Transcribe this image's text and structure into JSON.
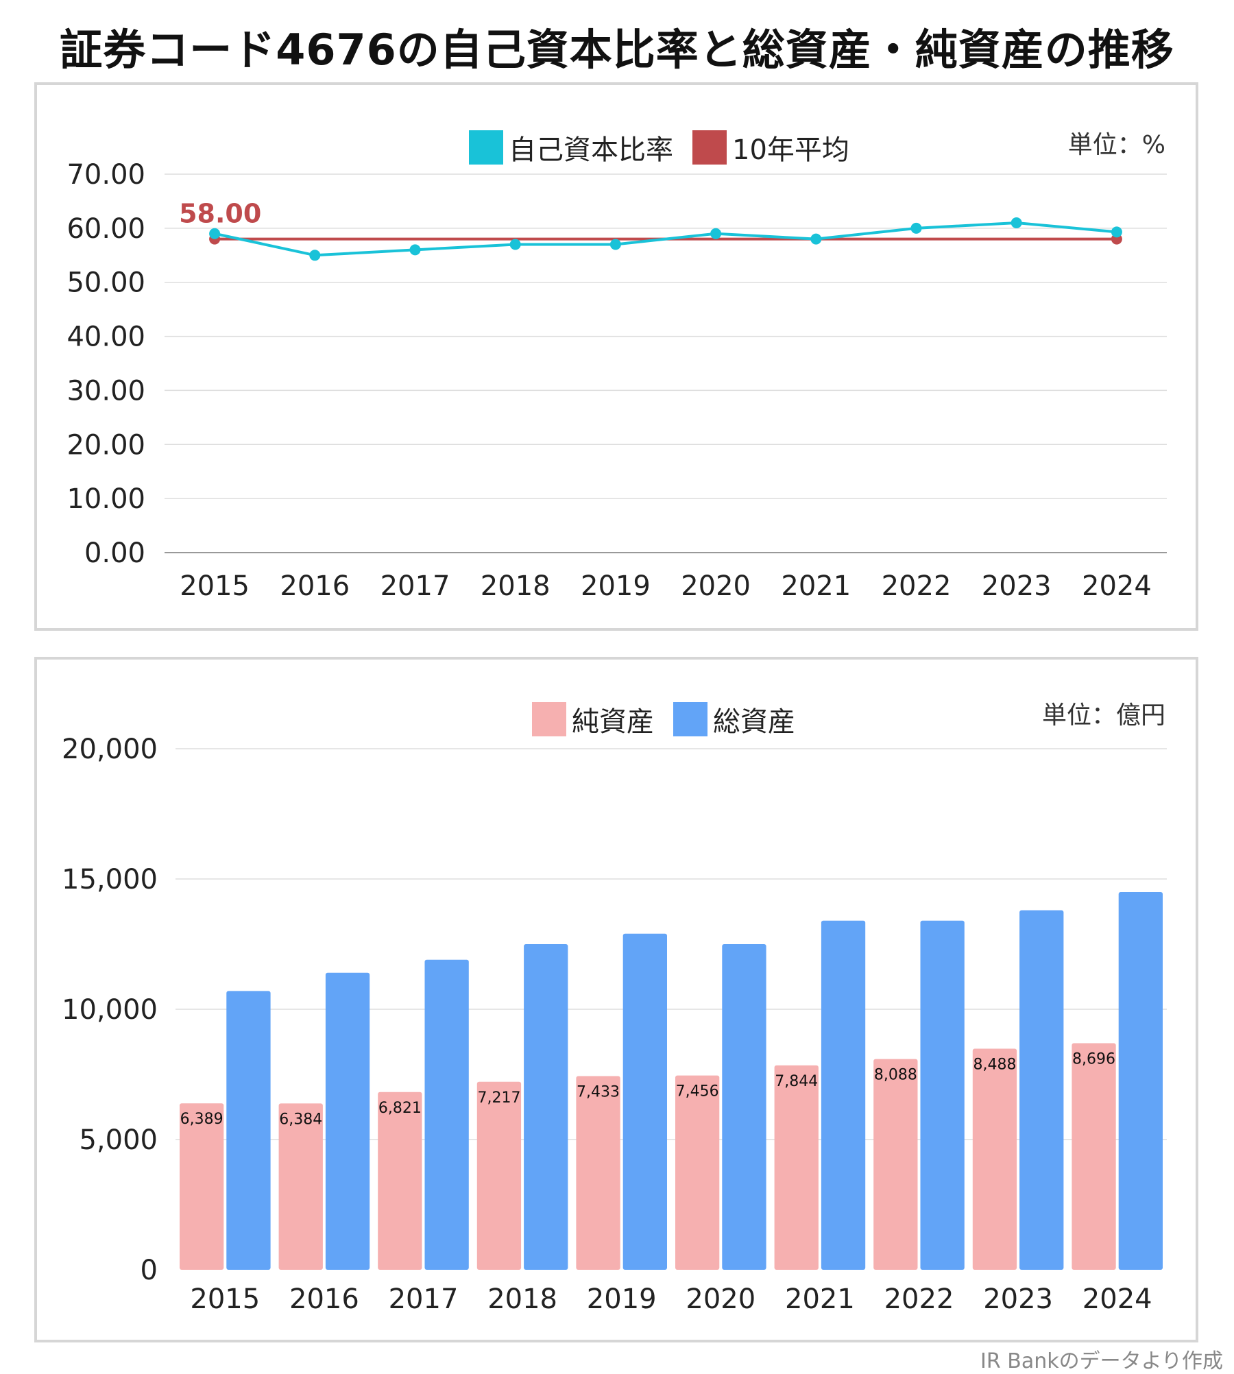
{
  "title": "証券コード4676の自己資本比率と総資産・純資産の推移",
  "credit": "IR Bankのデータより作成",
  "colors": {
    "equity_ratio": "#19c2d8",
    "avg10": "#bf4a4c",
    "net_assets": "#f6b0b0",
    "total_assets": "#62a4f7",
    "grid": "#dddddd"
  },
  "chart_data": [
    {
      "type": "line",
      "unit": "単位：%",
      "x": [
        "2015",
        "2016",
        "2017",
        "2018",
        "2019",
        "2020",
        "2021",
        "2022",
        "2023",
        "2024"
      ],
      "series": [
        {
          "name": "自己資本比率",
          "values": [
            59,
            55,
            56,
            57,
            57,
            59,
            58,
            60,
            61,
            59.3
          ]
        },
        {
          "name": "10年平均",
          "values": [
            58,
            58,
            58,
            58,
            58,
            58,
            58,
            58,
            58,
            58
          ]
        }
      ],
      "annotation": "58.00",
      "ylim": [
        0,
        70
      ],
      "yticks": [
        "0.00",
        "10.00",
        "20.00",
        "30.00",
        "40.00",
        "50.00",
        "60.00",
        "70.00"
      ],
      "legend": "top-center",
      "grid": true
    },
    {
      "type": "bar",
      "unit": "単位：億円",
      "categories": [
        "2015",
        "2016",
        "2017",
        "2018",
        "2019",
        "2020",
        "2021",
        "2022",
        "2023",
        "2024"
      ],
      "series": [
        {
          "name": "純資産",
          "values": [
            6389,
            6384,
            6821,
            7217,
            7433,
            7456,
            7844,
            8088,
            8488,
            8696
          ],
          "labels": [
            "6,389",
            "6,384",
            "6,821",
            "7,217",
            "7,433",
            "7,456",
            "7,844",
            "8,088",
            "8,488",
            "8,696"
          ]
        },
        {
          "name": "総資産",
          "values": [
            10700,
            11400,
            11900,
            12500,
            12900,
            12500,
            13400,
            13400,
            13800,
            14500
          ]
        }
      ],
      "ylim": [
        0,
        20000
      ],
      "yticks": [
        "0",
        "5,000",
        "10,000",
        "15,000",
        "20,000"
      ],
      "legend": "top-center",
      "grid": true
    }
  ]
}
